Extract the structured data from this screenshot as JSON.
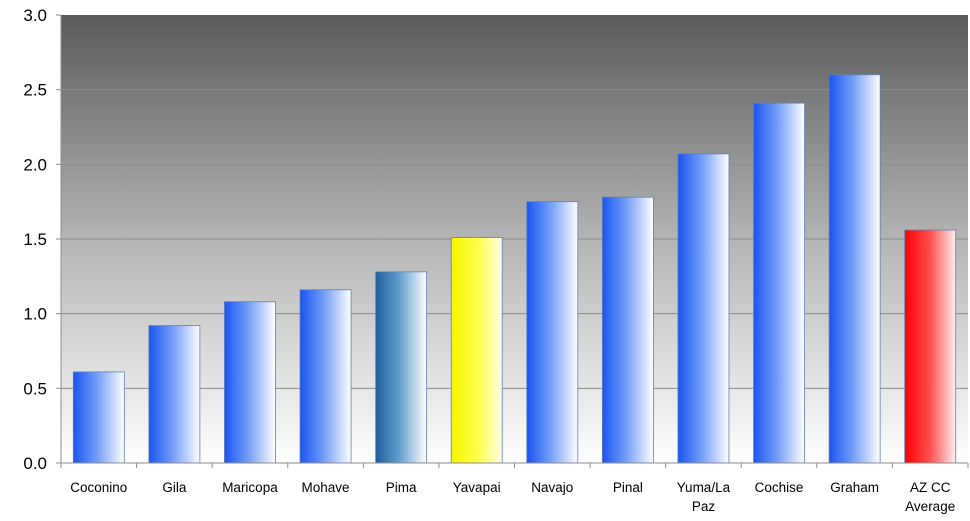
{
  "chart_data": {
    "type": "bar",
    "title": "",
    "xlabel": "",
    "ylabel": "",
    "ylim": [
      0,
      3.0
    ],
    "yticks": [
      "0.0",
      "0.5",
      "1.0",
      "1.5",
      "2.0",
      "2.5",
      "3.0"
    ],
    "grid": true,
    "legend": "none",
    "categories": [
      [
        "Coconino"
      ],
      [
        "Gila"
      ],
      [
        "Maricopa"
      ],
      [
        "Mohave"
      ],
      [
        "Pima"
      ],
      [
        "Yavapai"
      ],
      [
        "Navajo"
      ],
      [
        "Pinal"
      ],
      [
        "Yuma/La",
        "Paz"
      ],
      [
        "Cochise"
      ],
      [
        "Graham"
      ],
      [
        "AZ CC",
        "Average"
      ]
    ],
    "values": [
      0.61,
      0.92,
      1.08,
      1.16,
      1.28,
      1.51,
      1.75,
      1.78,
      2.07,
      2.41,
      2.6,
      1.56
    ],
    "bar_styles": [
      "blue",
      "blue",
      "blue",
      "blue",
      "teal",
      "yellow",
      "blue",
      "blue",
      "blue",
      "blue",
      "blue",
      "red"
    ],
    "colors": {
      "blue": "#1f5ff5",
      "teal": "#2f78b8",
      "yellow": "#ffff22",
      "red": "#ff1a1a",
      "plot_top": "#5a5a5a",
      "plot_bottom": "#ffffff"
    }
  }
}
